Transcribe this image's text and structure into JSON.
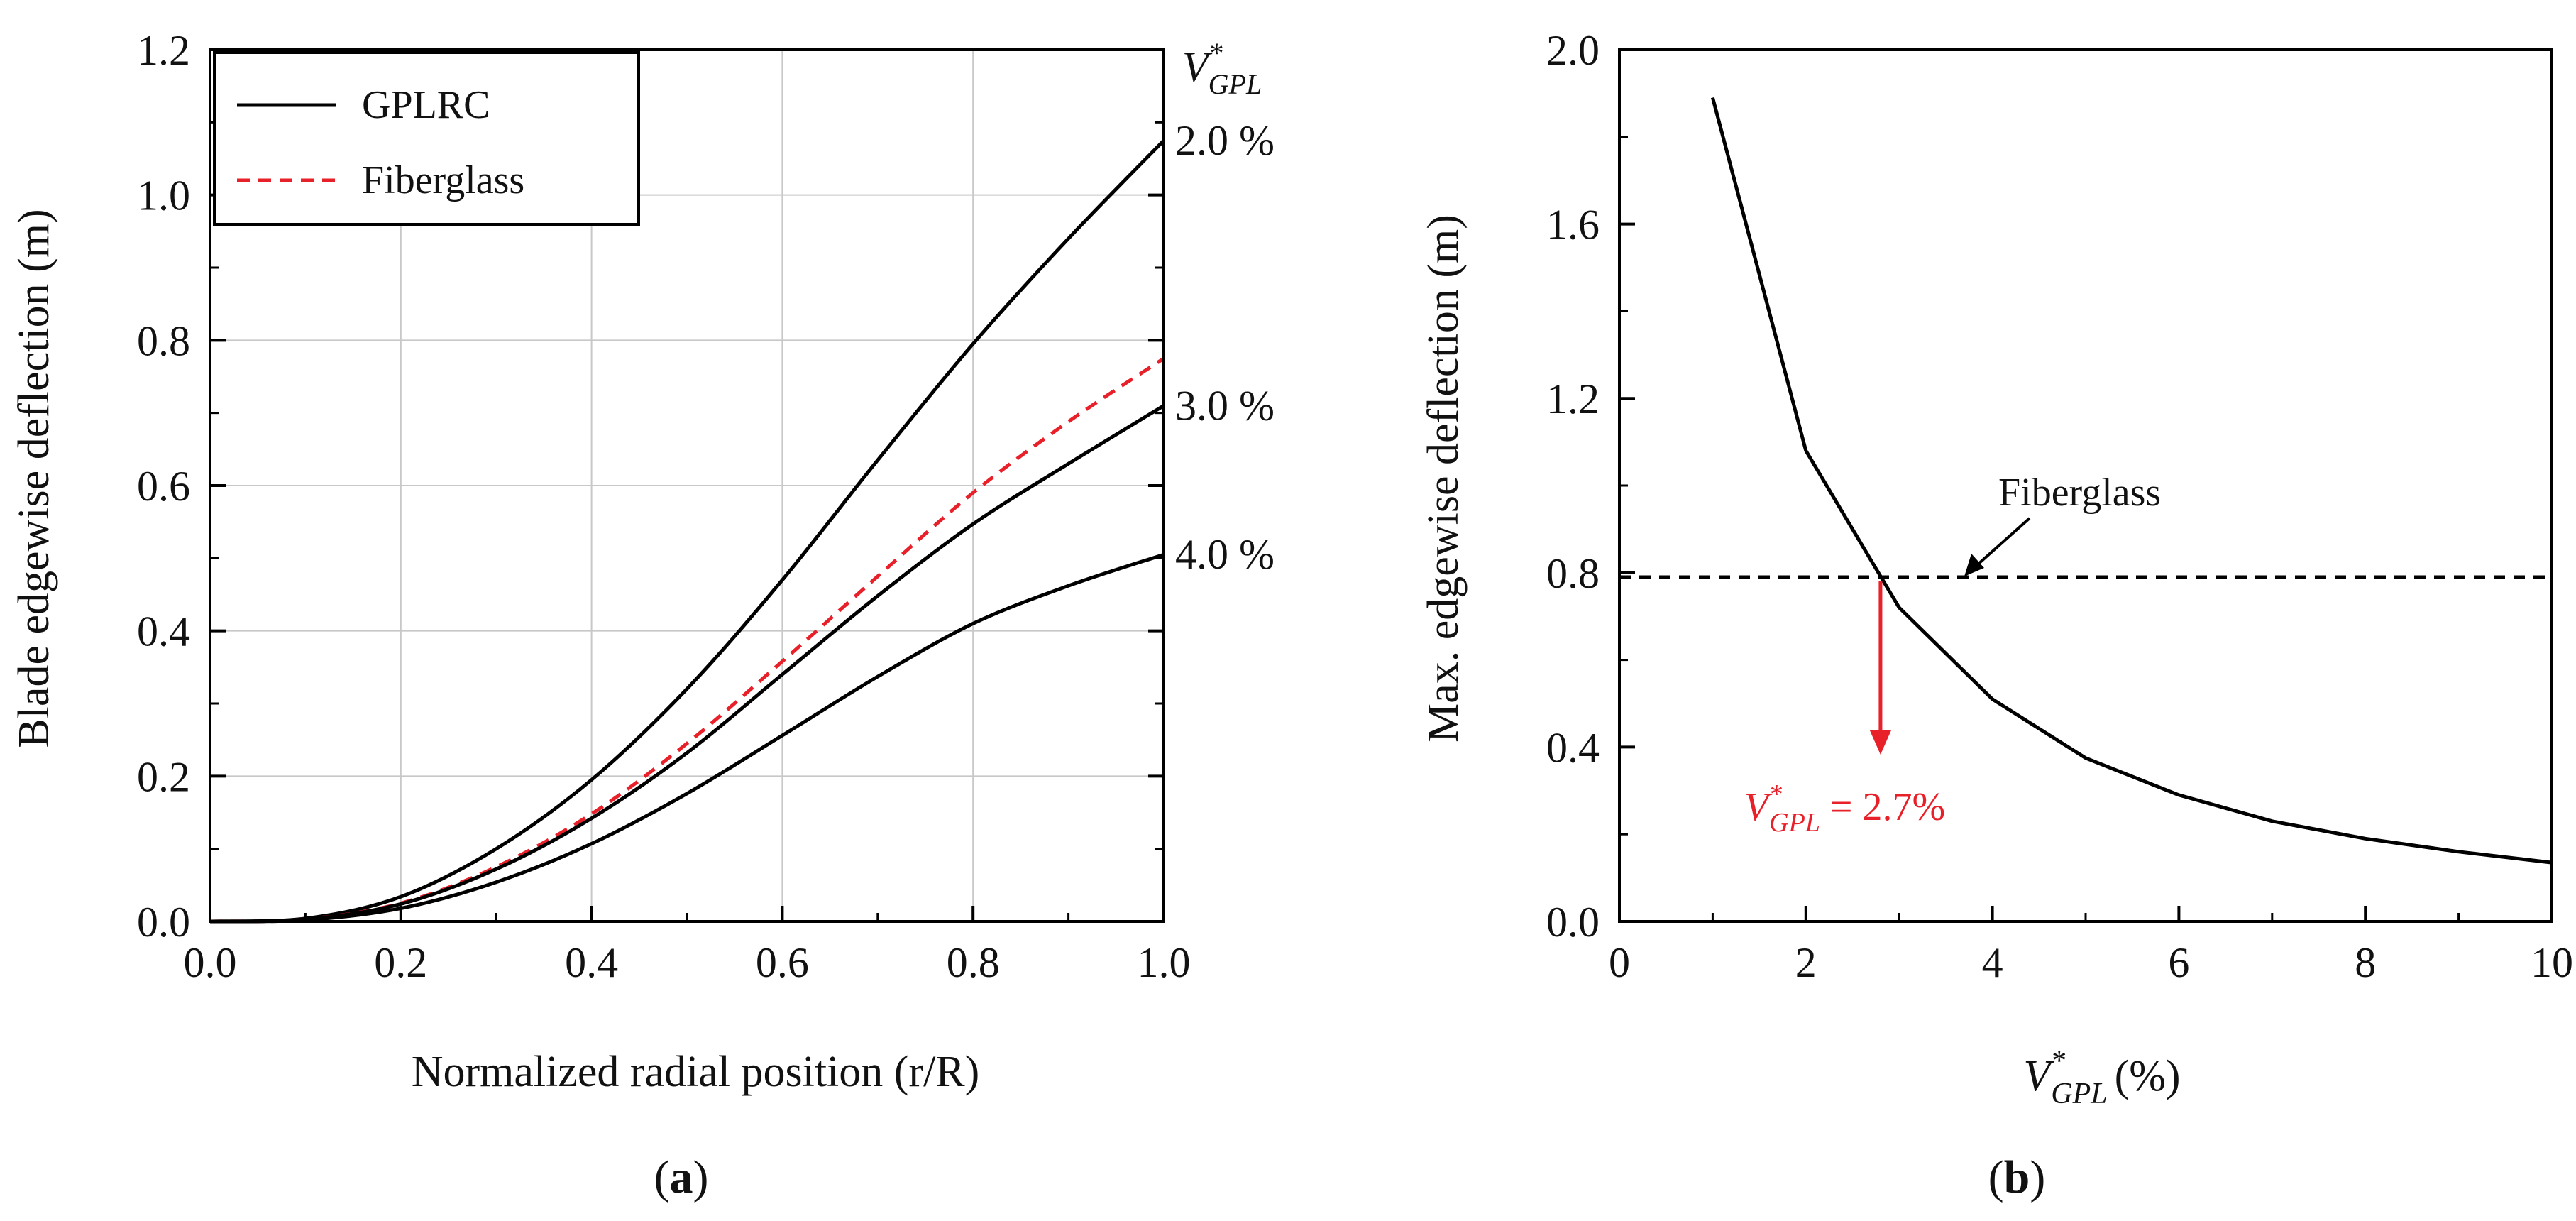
{
  "chart_data": [
    {
      "panel_label": "a",
      "type": "line",
      "xlabel": "Normalized radial position (r/R)",
      "ylabel": "Blade edgewise deflection (m)",
      "xlim": [
        0.0,
        1.0
      ],
      "ylim": [
        0.0,
        1.2
      ],
      "x_ticks": [
        "0.0",
        "0.2",
        "0.4",
        "0.6",
        "0.8",
        "1.0"
      ],
      "y_ticks": [
        "0.0",
        "0.2",
        "0.4",
        "0.6",
        "0.8",
        "1.0",
        "1.2"
      ],
      "grid": true,
      "legend": {
        "placement": "top-left",
        "entries": [
          {
            "label": "GPLRC",
            "color": "#000000",
            "dash": "solid"
          },
          {
            "label": "Fiberglass",
            "color": "#e8202a",
            "dash": "dashed"
          }
        ]
      },
      "right_header": {
        "symbol": "V",
        "superscript": "*",
        "subscript": "GPL"
      },
      "x": [
        0.0,
        0.1,
        0.2,
        0.3,
        0.4,
        0.5,
        0.6,
        0.7,
        0.8,
        0.9,
        1.0
      ],
      "series": [
        {
          "name": "GPLRC",
          "tip_label": "2.0 %",
          "color": "#000000",
          "dash": "solid",
          "values": [
            0.0,
            0.004,
            0.034,
            0.1,
            0.195,
            0.32,
            0.47,
            0.635,
            0.795,
            0.94,
            1.075
          ]
        },
        {
          "name": "Fiberglass",
          "tip_label": "",
          "color": "#e8202a",
          "dash": "dashed",
          "values": [
            0.0,
            0.003,
            0.025,
            0.075,
            0.148,
            0.245,
            0.358,
            0.475,
            0.59,
            0.688,
            0.775
          ]
        },
        {
          "name": "GPLRC",
          "tip_label": "3.0 %",
          "color": "#000000",
          "dash": "solid",
          "values": [
            0.0,
            0.003,
            0.024,
            0.072,
            0.142,
            0.232,
            0.34,
            0.448,
            0.547,
            0.63,
            0.71
          ]
        },
        {
          "name": "GPLRC",
          "tip_label": "4.0 %",
          "color": "#000000",
          "dash": "solid",
          "values": [
            0.0,
            0.002,
            0.018,
            0.054,
            0.107,
            0.176,
            0.256,
            0.337,
            0.41,
            0.462,
            0.505
          ]
        }
      ]
    },
    {
      "panel_label": "b",
      "type": "line",
      "xlabel_symbol": {
        "symbol": "V",
        "superscript": "*",
        "subscript": "GPL"
      },
      "xlabel_unit": "(%)",
      "ylabel": "Max. edgewise deflection (m)",
      "xlim": [
        0,
        10
      ],
      "ylim": [
        0.0,
        2.0
      ],
      "x_ticks": [
        "0",
        "2",
        "4",
        "6",
        "8",
        "10"
      ],
      "y_ticks": [
        "0.0",
        "0.4",
        "0.8",
        "1.2",
        "1.6",
        "2.0"
      ],
      "grid": false,
      "series": [
        {
          "name": "GPLRC",
          "color": "#000000",
          "dash": "solid",
          "x": [
            1,
            2,
            3,
            4,
            5,
            6,
            7,
            8,
            9,
            10
          ],
          "values": [
            1.89,
            1.08,
            0.72,
            0.51,
            0.375,
            0.29,
            0.23,
            0.19,
            0.16,
            0.135
          ]
        }
      ],
      "reference_line": {
        "label": "Fiberglass",
        "value": 0.79,
        "color": "#000000",
        "dash": "dashed"
      },
      "annotation": {
        "x": 2.8,
        "color": "#e8202a",
        "symbol": "V",
        "superscript": "*",
        "subscript": "GPL",
        "text": " = 2.7%"
      }
    }
  ]
}
